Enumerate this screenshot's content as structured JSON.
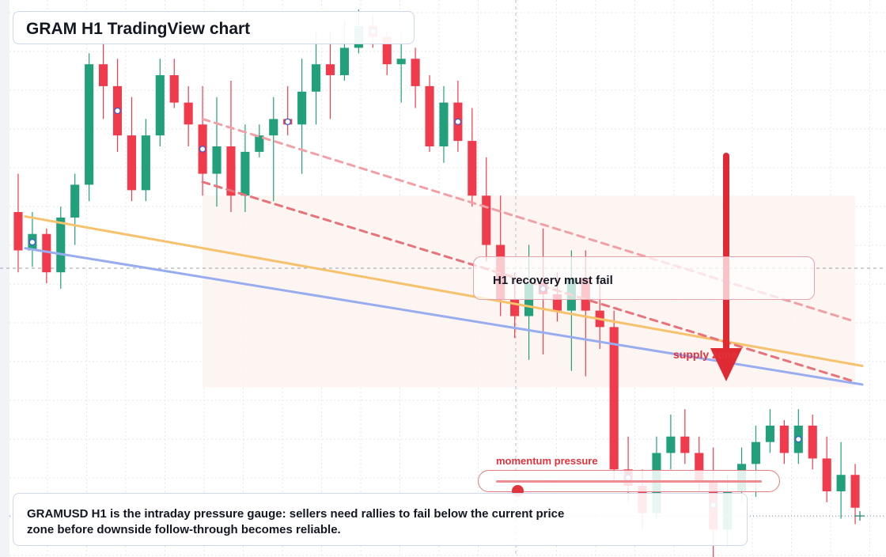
{
  "title": "GRAM H1 TradingView chart",
  "callout": "H1 recovery must fail",
  "supply_label": "supply zone",
  "gauge": {
    "label": "momentum pressure",
    "level": 0.08
  },
  "note": "GRAMUSD H1 is the intraday pressure gauge: sellers need rallies to fail below the current price zone before downside follow-through becomes reliable.",
  "colors": {
    "up": "#22a07c",
    "down": "#ef3b4c",
    "trend_orange": "#f7c26d",
    "trend_blue": "#98acf0",
    "resistance_dashed": "#e8727a",
    "arrow": "#e02a33",
    "zone_fill": "#fdf3ef",
    "grid": "#e4e7ee"
  },
  "chart_data": {
    "type": "candlestick",
    "symbol": "GRAMUSD",
    "timeframe": "H1",
    "title": "GRAM H1 TradingView chart",
    "xlabel": "",
    "ylabel": "",
    "ylim": [
      0,
      100
    ],
    "grid": true,
    "candles": [
      [
        63.0,
        70.0,
        52.0,
        56.0
      ],
      [
        56.0,
        63.0,
        53.0,
        59.0
      ],
      [
        59.0,
        60.0,
        50.0,
        52.0
      ],
      [
        52.0,
        64.0,
        49.0,
        62.0
      ],
      [
        62.0,
        70.0,
        57.0,
        68.0
      ],
      [
        68.0,
        92.0,
        65.0,
        90.0
      ],
      [
        90.0,
        95.0,
        80.0,
        86.0
      ],
      [
        86.0,
        91.0,
        74.0,
        77.0
      ],
      [
        77.0,
        84.0,
        65.0,
        67.0
      ],
      [
        67.0,
        80.0,
        65.0,
        77.0
      ],
      [
        77.0,
        91.0,
        75.0,
        88.0
      ],
      [
        88.0,
        91.0,
        82.0,
        83.0
      ],
      [
        83.0,
        86.0,
        75.0,
        79.0
      ],
      [
        79.0,
        86.0,
        66.0,
        70.0
      ],
      [
        70.0,
        84.0,
        64.0,
        75.0
      ],
      [
        75.0,
        87.0,
        63.0,
        66.0
      ],
      [
        66.0,
        79.0,
        63.0,
        74.0
      ],
      [
        74.0,
        79.0,
        73.0,
        77.0
      ],
      [
        77.0,
        84.0,
        65.0,
        80.0
      ],
      [
        80.0,
        86.0,
        77.0,
        79.0
      ],
      [
        79.0,
        91.0,
        70.0,
        85.0
      ],
      [
        85.0,
        96.0,
        79.0,
        90.0
      ],
      [
        90.0,
        96.0,
        80.0,
        88.0
      ],
      [
        88.0,
        98.0,
        87.0,
        93.0
      ],
      [
        93.0,
        100.0,
        92.0,
        97.0
      ],
      [
        97.0,
        99.0,
        93.0,
        95.0
      ],
      [
        95.0,
        96.0,
        88.0,
        90.0
      ],
      [
        90.0,
        96.0,
        83.0,
        91.0
      ],
      [
        91.0,
        93.0,
        82.0,
        86.0
      ],
      [
        86.0,
        88.0,
        74.0,
        75.0
      ],
      [
        75.0,
        86.0,
        72.0,
        83.0
      ],
      [
        83.0,
        87.0,
        74.0,
        76.0
      ],
      [
        76.0,
        82.0,
        64.0,
        66.0
      ],
      [
        66.0,
        73.0,
        54.0,
        57.0
      ],
      [
        57.0,
        66.0,
        44.0,
        47.0
      ],
      [
        47.0,
        52.0,
        40.0,
        44.0
      ],
      [
        44.0,
        57.0,
        36.0,
        50.0
      ],
      [
        50.0,
        60.0,
        37.0,
        48.0
      ],
      [
        48.0,
        52.0,
        43.0,
        45.0
      ],
      [
        45.0,
        56.0,
        34.0,
        51.0
      ],
      [
        51.0,
        56.0,
        33.0,
        45.0
      ],
      [
        45.0,
        50.0,
        38.0,
        42.0
      ],
      [
        42.0,
        45.0,
        14.0,
        16.0
      ],
      [
        16.0,
        22.0,
        10.0,
        13.0
      ],
      [
        13.0,
        16.0,
        5.0,
        8.0
      ],
      [
        8.0,
        22.0,
        7.0,
        19.0
      ],
      [
        19.0,
        26.0,
        16.0,
        22.0
      ],
      [
        22.0,
        27.0,
        17.0,
        19.0
      ],
      [
        19.0,
        22.0,
        12.0,
        14.0
      ],
      [
        14.0,
        20.0,
        0.0,
        5.0
      ],
      [
        5.0,
        15.0,
        2.0,
        12.0
      ],
      [
        12.0,
        20.0,
        10.0,
        17.0
      ],
      [
        17.0,
        24.0,
        11.0,
        21.0
      ],
      [
        21.0,
        27.0,
        19.0,
        24.0
      ],
      [
        24.0,
        25.0,
        17.0,
        19.0
      ],
      [
        19.0,
        27.0,
        17.0,
        24.0
      ],
      [
        24.0,
        26.0,
        16.0,
        18.0
      ],
      [
        18.0,
        22.0,
        10.0,
        12.0
      ],
      [
        12.0,
        21.0,
        7.0,
        15.0
      ],
      [
        15.0,
        17.0,
        6.0,
        9.0
      ]
    ],
    "trendlines": [
      {
        "from": [
          0.5,
          62.2
        ],
        "to": [
          59.5,
          34.9
        ],
        "style": "solid",
        "color": "#f7c26d"
      },
      {
        "from": [
          0.5,
          56.4
        ],
        "to": [
          59.5,
          31.5
        ],
        "style": "solid",
        "color": "#98acf0"
      },
      {
        "from": [
          13.0,
          68.5
        ],
        "to": [
          59.0,
          32.0
        ],
        "style": "dashed",
        "color": "#e8727a"
      },
      {
        "from": [
          13.0,
          80.0
        ],
        "to": [
          59.0,
          43.0
        ],
        "style": "dashed",
        "color": "#f0a1a6"
      }
    ],
    "zones": [
      {
        "name": "supply zone",
        "from": 13.0,
        "to": 59.0,
        "low": 31.0,
        "high": 66.0
      }
    ],
    "current_price": 7.5
  }
}
